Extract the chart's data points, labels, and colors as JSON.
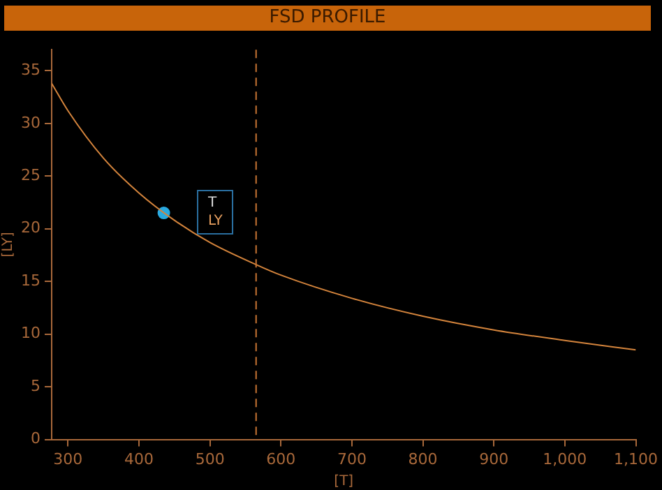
{
  "chart_data": {
    "type": "line",
    "title": "FSD PROFILE",
    "xlabel": "[T]",
    "ylabel": "[LY]",
    "xlim": [
      277,
      1100
    ],
    "ylim": [
      0,
      37
    ],
    "xticks": [
      300,
      400,
      500,
      600,
      700,
      800,
      900,
      {
        "value": 1000,
        "label": "1,000"
      },
      {
        "value": 1100,
        "label": "1,100"
      }
    ],
    "yticks": [
      0,
      5,
      10,
      15,
      20,
      25,
      30,
      35
    ],
    "series": [
      {
        "type": "line",
        "color": "#d4843c",
        "marker": "none",
        "x": [
          277,
          300,
          350,
          400,
          450,
          500,
          565,
          600,
          700,
          800,
          900,
          1000,
          1100
        ],
        "values": [
          33.8,
          31.2,
          26.7,
          23.4,
          20.8,
          18.7,
          16.6,
          15.6,
          13.4,
          11.7,
          10.4,
          9.4,
          8.5
        ]
      },
      {
        "type": "scatter",
        "color": "#29a9e0",
        "marker": "circle",
        "x": [
          435
        ],
        "values": [
          21.5
        ]
      }
    ],
    "ref_lines": [
      {
        "axis": "x",
        "value": 565,
        "color": "#c87533",
        "line_style": "dashed"
      }
    ],
    "annotations": [
      "T",
      "LY"
    ],
    "grid": false,
    "legend": false
  }
}
